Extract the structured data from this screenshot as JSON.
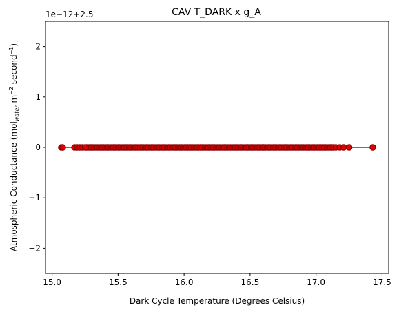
{
  "chart_data": {
    "type": "scatter",
    "title": "CAV T_DARK x g_A",
    "xlabel": "Dark Cycle Temperature (Degrees Celsius)",
    "ylabel": {
      "prefix": "Atmospheric Conductance (mol",
      "sub": "water",
      "mid": " m",
      "sup1": "−2",
      "mid2": " second",
      "sup2": "−1",
      "suffix": ")"
    },
    "offset_label": "1e−12+2.5",
    "xlim": [
      14.95,
      17.55
    ],
    "ylim": [
      -2.5,
      2.5
    ],
    "xticks": [
      15.0,
      15.5,
      16.0,
      16.5,
      17.0,
      17.5
    ],
    "xtick_labels": [
      "15.0",
      "15.5",
      "16.0",
      "16.5",
      "17.0",
      "17.5"
    ],
    "yticks": [
      -2,
      -1,
      0,
      1,
      2
    ],
    "ytick_labels": [
      "−2",
      "−1",
      "0",
      "1",
      "2"
    ],
    "grid": false,
    "series": [
      {
        "color": "#e00000",
        "marker_edge": "#8b0000",
        "x_range": [
          15.07,
          17.43
        ],
        "x_isolated": [
          15.07,
          15.08,
          15.17,
          15.19,
          15.21,
          15.23,
          15.25,
          17.15,
          17.18,
          17.21,
          17.25,
          17.43
        ],
        "y": 0
      }
    ]
  }
}
